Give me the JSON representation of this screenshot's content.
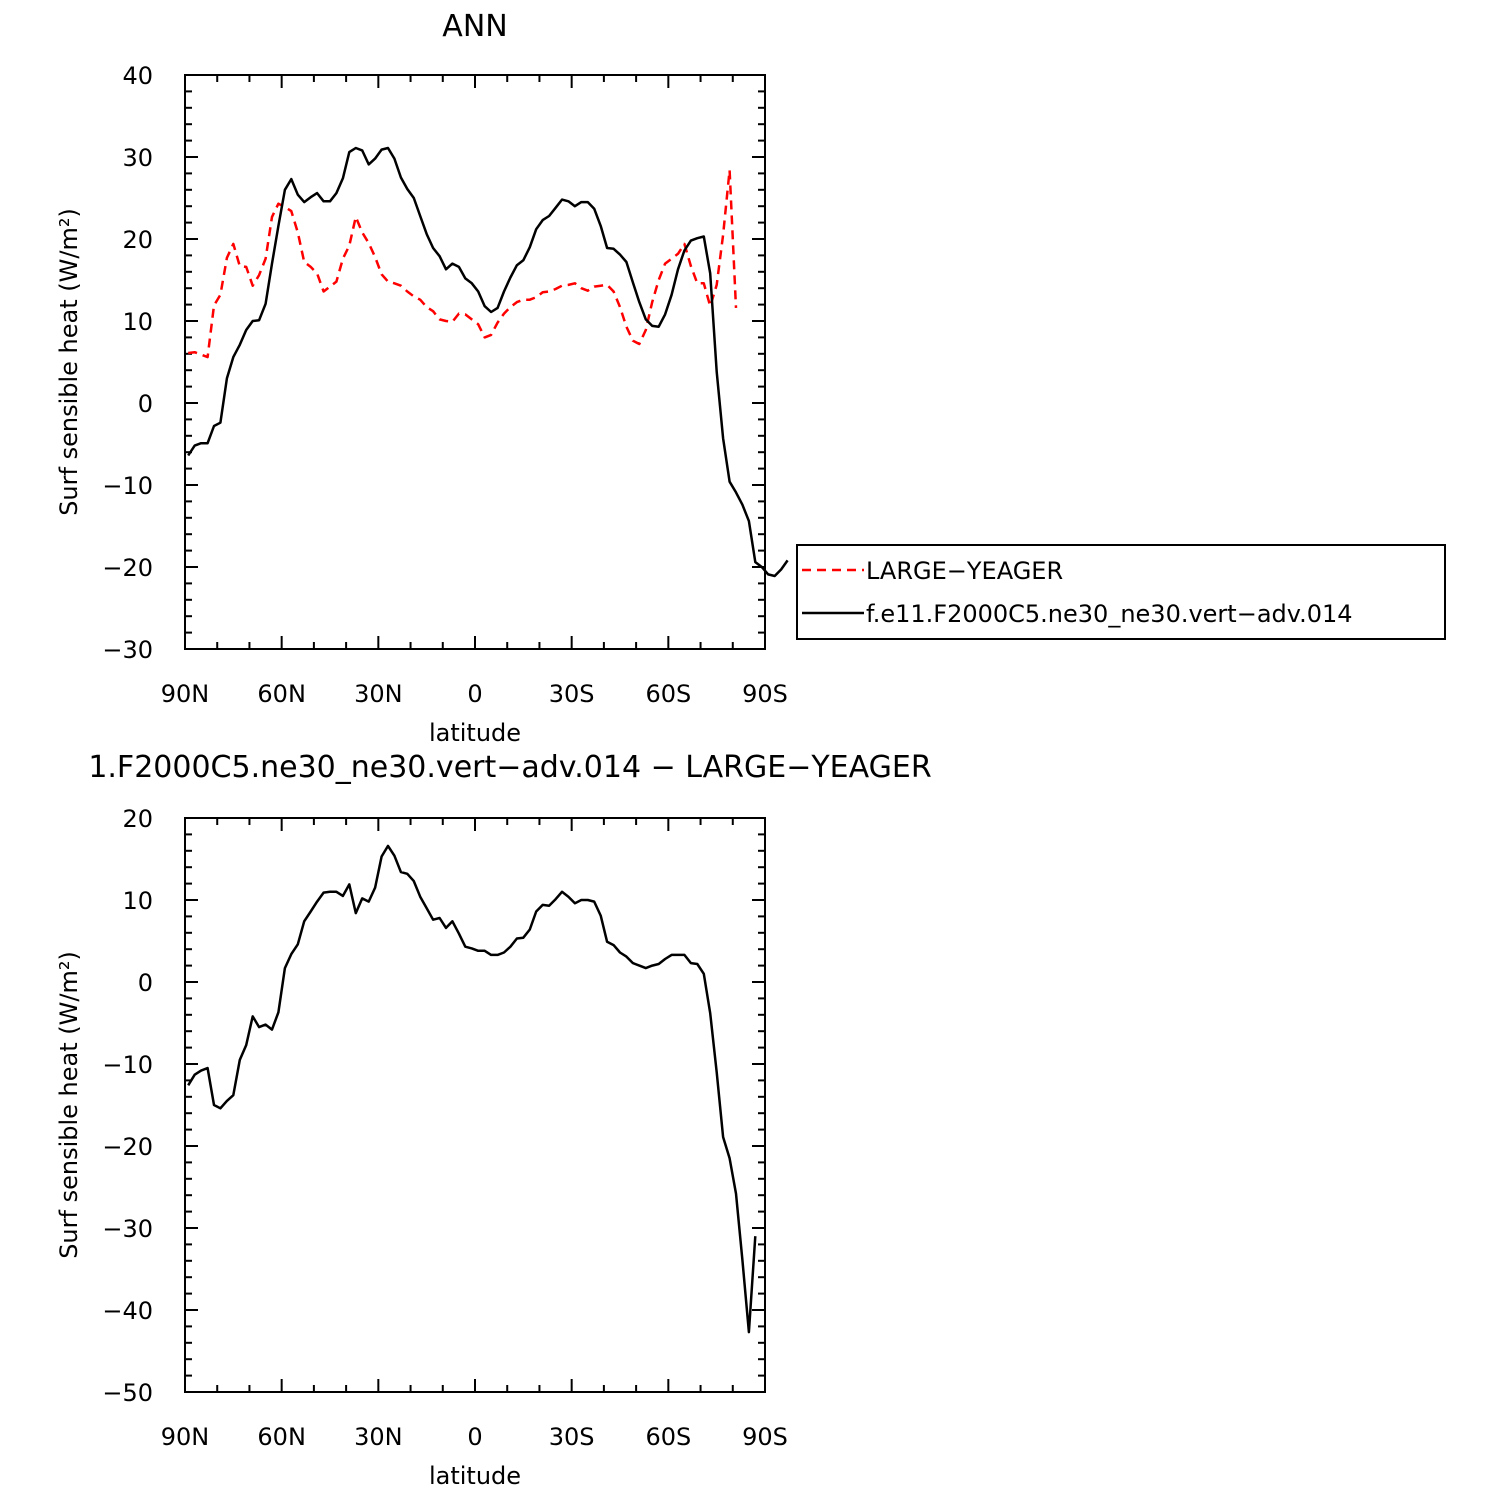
{
  "chart_data": [
    {
      "type": "line",
      "title": "ANN",
      "xlabel": "latitude",
      "ylabel": "Surf sensible heat (W/m²)",
      "xlim": [
        90,
        -90
      ],
      "ylim": [
        -30,
        40
      ],
      "xticks": [
        90,
        60,
        30,
        0,
        -30,
        -60,
        -90
      ],
      "xtick_labels": [
        "90N",
        "60N",
        "30N",
        "0",
        "30S",
        "60S",
        "90S"
      ],
      "yticks": [
        40,
        30,
        20,
        10,
        0,
        -10,
        -20,
        -30
      ],
      "ytick_labels": [
        "40",
        "30",
        "20",
        "10",
        "0",
        "−10",
        "−20",
        "−30"
      ],
      "legend": "right",
      "series": [
        {
          "name": "LARGE−YEAGER",
          "color": "#ff0000",
          "dash": "dashed",
          "points": [
            [
              89,
              6.1
            ],
            [
              87,
              6.2
            ],
            [
              85,
              5.9
            ],
            [
              83,
              5.6
            ],
            [
              81,
              11.9
            ],
            [
              79,
              13.2
            ],
            [
              77,
              17.7
            ],
            [
              75,
              19.4
            ],
            [
              73,
              16.7
            ],
            [
              71,
              16.6
            ],
            [
              69,
              14.3
            ],
            [
              67,
              15.6
            ],
            [
              65,
              17.6
            ],
            [
              63,
              22.7
            ],
            [
              61,
              24.3
            ],
            [
              59,
              23.9
            ],
            [
              57,
              23.4
            ],
            [
              55,
              20.8
            ],
            [
              53,
              17.2
            ],
            [
              51,
              16.6
            ],
            [
              49,
              15.8
            ],
            [
              47,
              13.6
            ],
            [
              45,
              14.2
            ],
            [
              43,
              14.8
            ],
            [
              41,
              17.6
            ],
            [
              39,
              19.2
            ],
            [
              37,
              22.7
            ],
            [
              35,
              20.8
            ],
            [
              33,
              19.5
            ],
            [
              31,
              17.8
            ],
            [
              29,
              15.7
            ],
            [
              27,
              14.8
            ],
            [
              25,
              14.6
            ],
            [
              23,
              14.3
            ],
            [
              21,
              13.6
            ],
            [
              19,
              13.0
            ],
            [
              17,
              12.6
            ],
            [
              15,
              11.7
            ],
            [
              13,
              11.2
            ],
            [
              11,
              10.2
            ],
            [
              9,
              10.0
            ],
            [
              7,
              9.9
            ],
            [
              5,
              10.9
            ],
            [
              3,
              10.8
            ],
            [
              1,
              10.2
            ],
            [
              -1,
              9.6
            ],
            [
              -3,
              8.0
            ],
            [
              -5,
              8.3
            ],
            [
              -7,
              9.8
            ],
            [
              -9,
              10.9
            ],
            [
              -11,
              11.7
            ],
            [
              -13,
              12.3
            ],
            [
              -15,
              12.6
            ],
            [
              -17,
              12.6
            ],
            [
              -19,
              12.9
            ],
            [
              -21,
              13.5
            ],
            [
              -23,
              13.6
            ],
            [
              -25,
              13.9
            ],
            [
              -27,
              14.3
            ],
            [
              -29,
              14.4
            ],
            [
              -31,
              14.6
            ],
            [
              -33,
              14.0
            ],
            [
              -35,
              13.7
            ],
            [
              -37,
              14.2
            ],
            [
              -39,
              14.3
            ],
            [
              -41,
              14.4
            ],
            [
              -43,
              13.6
            ],
            [
              -45,
              11.7
            ],
            [
              -47,
              9.3
            ],
            [
              -49,
              7.6
            ],
            [
              -51,
              7.2
            ],
            [
              -53,
              8.9
            ],
            [
              -55,
              12.3
            ],
            [
              -57,
              15.0
            ],
            [
              -59,
              17.0
            ],
            [
              -61,
              17.6
            ],
            [
              -63,
              18.2
            ],
            [
              -65,
              19.4
            ],
            [
              -67,
              16.7
            ],
            [
              -69,
              14.6
            ],
            [
              -71,
              14.6
            ],
            [
              -73,
              11.8
            ],
            [
              -75,
              14.4
            ],
            [
              -77,
              20.5
            ],
            [
              -79,
              28.4
            ],
            [
              -81,
              11.6
            ]
          ]
        },
        {
          "name": "f.e11.F2000C5.ne30_ne30.vert−adv.014",
          "color": "#000000",
          "dash": "solid",
          "points": [
            [
              89,
              -6.4
            ],
            [
              87,
              -5.2
            ],
            [
              85,
              -4.9
            ],
            [
              83,
              -4.9
            ],
            [
              81,
              -2.8
            ],
            [
              79,
              -2.4
            ],
            [
              77,
              3.0
            ],
            [
              75,
              5.6
            ],
            [
              73,
              7.1
            ],
            [
              71,
              8.9
            ],
            [
              69,
              10.0
            ],
            [
              67,
              10.1
            ],
            [
              65,
              12.1
            ],
            [
              63,
              17.0
            ],
            [
              61,
              21.6
            ],
            [
              59,
              26.0
            ],
            [
              57,
              27.3
            ],
            [
              55,
              25.4
            ],
            [
              53,
              24.5
            ],
            [
              51,
              25.1
            ],
            [
              49,
              25.6
            ],
            [
              47,
              24.6
            ],
            [
              45,
              24.6
            ],
            [
              43,
              25.6
            ],
            [
              41,
              27.4
            ],
            [
              39,
              30.6
            ],
            [
              37,
              31.1
            ],
            [
              35,
              30.8
            ],
            [
              33,
              29.1
            ],
            [
              31,
              29.8
            ],
            [
              29,
              30.9
            ],
            [
              27,
              31.1
            ],
            [
              25,
              29.8
            ],
            [
              23,
              27.5
            ],
            [
              21,
              26.1
            ],
            [
              19,
              25.0
            ],
            [
              17,
              22.8
            ],
            [
              15,
              20.6
            ],
            [
              13,
              18.9
            ],
            [
              11,
              17.9
            ],
            [
              9,
              16.3
            ],
            [
              7,
              17.0
            ],
            [
              5,
              16.6
            ],
            [
              3,
              15.2
            ],
            [
              1,
              14.6
            ],
            [
              -1,
              13.6
            ],
            [
              -3,
              11.8
            ],
            [
              -5,
              11.1
            ],
            [
              -7,
              11.6
            ],
            [
              -9,
              13.6
            ],
            [
              -11,
              15.3
            ],
            [
              -13,
              16.8
            ],
            [
              -15,
              17.4
            ],
            [
              -17,
              19.0
            ],
            [
              -19,
              21.2
            ],
            [
              -21,
              22.3
            ],
            [
              -23,
              22.8
            ],
            [
              -25,
              23.8
            ],
            [
              -27,
              24.8
            ],
            [
              -29,
              24.6
            ],
            [
              -31,
              24.0
            ],
            [
              -33,
              24.5
            ],
            [
              -35,
              24.5
            ],
            [
              -37,
              23.7
            ],
            [
              -39,
              21.6
            ],
            [
              -41,
              18.9
            ],
            [
              -43,
              18.8
            ],
            [
              -45,
              18.1
            ],
            [
              -47,
              17.2
            ],
            [
              -49,
              14.7
            ],
            [
              -51,
              12.3
            ],
            [
              -53,
              10.2
            ],
            [
              -55,
              9.4
            ],
            [
              -57,
              9.3
            ],
            [
              -59,
              10.8
            ],
            [
              -61,
              13.2
            ],
            [
              -63,
              16.3
            ],
            [
              -65,
              18.6
            ],
            [
              -67,
              19.8
            ],
            [
              -69,
              20.1
            ],
            [
              -71,
              20.3
            ],
            [
              -73,
              15.8
            ],
            [
              -75,
              3.8
            ],
            [
              -77,
              -4.3
            ],
            [
              -79,
              -9.6
            ],
            [
              -81,
              -10.9
            ],
            [
              -83,
              -12.4
            ],
            [
              -85,
              -14.4
            ],
            [
              -87,
              -19.4
            ],
            [
              -89,
              -20.0
            ],
            [
              -91,
              -20.9
            ],
            [
              -93,
              -21.1
            ],
            [
              -95,
              -20.3
            ],
            [
              -97,
              -19.2
            ]
          ]
        }
      ]
    },
    {
      "type": "line",
      "title": "1.F2000C5.ne30_ne30.vert−adv.014 − LARGE−YEAGER",
      "xlabel": "latitude",
      "ylabel": "Surf sensible heat (W/m²)",
      "xlim": [
        90,
        -90
      ],
      "ylim": [
        -50,
        20
      ],
      "xticks": [
        90,
        60,
        30,
        0,
        -30,
        -60,
        -90
      ],
      "xtick_labels": [
        "90N",
        "60N",
        "30N",
        "0",
        "30S",
        "60S",
        "90S"
      ],
      "yticks": [
        20,
        10,
        0,
        -10,
        -20,
        -30,
        -40,
        -50
      ],
      "ytick_labels": [
        "20",
        "10",
        "0",
        "−10",
        "−20",
        "−30",
        "−40",
        "−50"
      ],
      "series": [
        {
          "color": "#000000",
          "dash": "solid",
          "points": [
            [
              89,
              -12.6
            ],
            [
              87,
              -11.3
            ],
            [
              85,
              -10.8
            ],
            [
              83,
              -10.5
            ],
            [
              81,
              -15.0
            ],
            [
              79,
              -15.4
            ],
            [
              77,
              -14.5
            ],
            [
              75,
              -13.8
            ],
            [
              73,
              -9.5
            ],
            [
              71,
              -7.7
            ],
            [
              69,
              -4.2
            ],
            [
              67,
              -5.5
            ],
            [
              65,
              -5.2
            ],
            [
              63,
              -5.8
            ],
            [
              61,
              -3.7
            ],
            [
              59,
              1.7
            ],
            [
              57,
              3.4
            ],
            [
              55,
              4.6
            ],
            [
              53,
              7.4
            ],
            [
              51,
              8.6
            ],
            [
              49,
              9.8
            ],
            [
              47,
              10.9
            ],
            [
              45,
              11.0
            ],
            [
              43,
              11.0
            ],
            [
              41,
              10.5
            ],
            [
              39,
              11.9
            ],
            [
              37,
              8.4
            ],
            [
              35,
              10.2
            ],
            [
              33,
              9.8
            ],
            [
              31,
              11.5
            ],
            [
              29,
              15.3
            ],
            [
              27,
              16.6
            ],
            [
              25,
              15.4
            ],
            [
              23,
              13.4
            ],
            [
              21,
              13.2
            ],
            [
              19,
              12.3
            ],
            [
              17,
              10.4
            ],
            [
              15,
              9.0
            ],
            [
              13,
              7.6
            ],
            [
              11,
              7.8
            ],
            [
              9,
              6.6
            ],
            [
              7,
              7.4
            ],
            [
              5,
              5.9
            ],
            [
              3,
              4.3
            ],
            [
              1,
              4.1
            ],
            [
              -1,
              3.8
            ],
            [
              -3,
              3.8
            ],
            [
              -5,
              3.3
            ],
            [
              -7,
              3.3
            ],
            [
              -9,
              3.6
            ],
            [
              -11,
              4.3
            ],
            [
              -13,
              5.3
            ],
            [
              -15,
              5.4
            ],
            [
              -17,
              6.4
            ],
            [
              -19,
              8.6
            ],
            [
              -21,
              9.4
            ],
            [
              -23,
              9.3
            ],
            [
              -25,
              10.1
            ],
            [
              -27,
              11.0
            ],
            [
              -29,
              10.4
            ],
            [
              -31,
              9.6
            ],
            [
              -33,
              10.0
            ],
            [
              -35,
              10.0
            ],
            [
              -37,
              9.8
            ],
            [
              -39,
              8.1
            ],
            [
              -41,
              4.9
            ],
            [
              -43,
              4.5
            ],
            [
              -45,
              3.6
            ],
            [
              -47,
              3.1
            ],
            [
              -49,
              2.3
            ],
            [
              -51,
              2.0
            ],
            [
              -53,
              1.7
            ],
            [
              -55,
              2.0
            ],
            [
              -57,
              2.2
            ],
            [
              -59,
              2.8
            ],
            [
              -61,
              3.3
            ],
            [
              -63,
              3.3
            ],
            [
              -65,
              3.3
            ],
            [
              -67,
              2.3
            ],
            [
              -69,
              2.2
            ],
            [
              -71,
              1.0
            ],
            [
              -73,
              -3.8
            ],
            [
              -75,
              -11.0
            ],
            [
              -77,
              -18.9
            ],
            [
              -79,
              -21.5
            ],
            [
              -81,
              -25.8
            ],
            [
              -83,
              -33.9
            ],
            [
              -85,
              -42.7
            ],
            [
              -87,
              -31.0
            ]
          ]
        }
      ]
    }
  ]
}
